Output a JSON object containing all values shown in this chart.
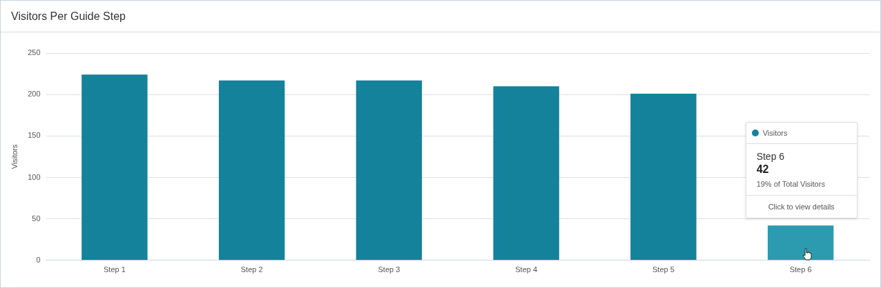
{
  "chart_data": {
    "type": "bar",
    "title": "Visitors Per Guide Step",
    "ylabel": "Visitors",
    "categories": [
      "Step 1",
      "Step 2",
      "Step 3",
      "Step 4",
      "Step 5",
      "Step 6"
    ],
    "series": [
      {
        "name": "Visitors",
        "color": "#13829a",
        "colors": [
          "#13829a",
          "#13829a",
          "#13829a",
          "#13829a",
          "#13829a",
          "#2c9bb0"
        ],
        "values": [
          224,
          217,
          217,
          210,
          201,
          42
        ]
      }
    ],
    "ylim": [
      0,
      250
    ],
    "yticks": [
      0,
      50,
      100,
      150,
      200,
      250
    ],
    "grid": "y",
    "annotations": [
      "Step 6",
      "42",
      "19% of Total Visitors",
      "Click to view details"
    ]
  }
}
